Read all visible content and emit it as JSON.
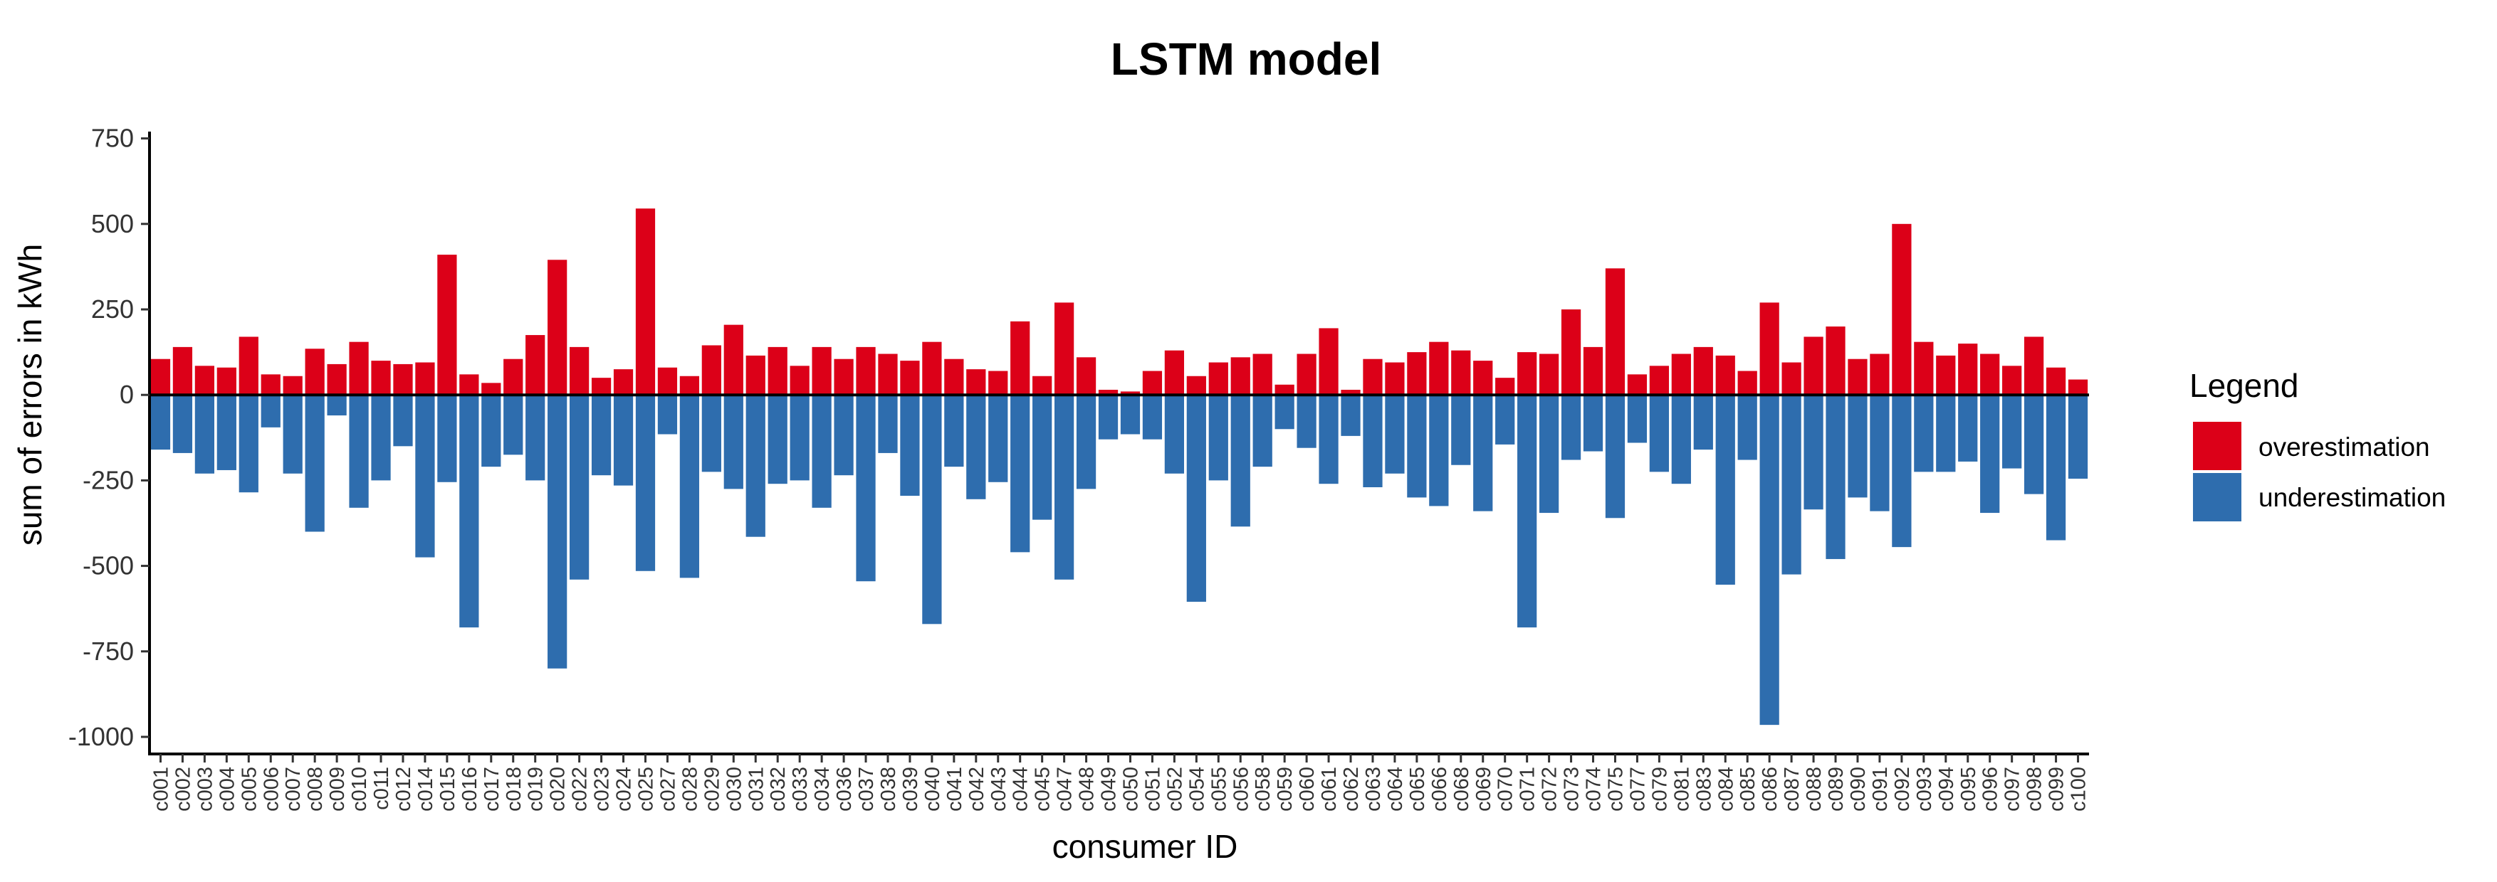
{
  "colors": {
    "overestimation": "#DC0018",
    "underestimation": "#2E6DAE"
  },
  "chart_data": {
    "type": "bar",
    "title": "LSTM model",
    "xlabel": "consumer ID",
    "ylabel": "sum of errors in kWh",
    "ylim": [
      -1050,
      770
    ],
    "yticks": [
      750,
      500,
      250,
      0,
      -250,
      -500,
      -750,
      -1000
    ],
    "ytick_labels": [
      "750",
      "500",
      "250",
      "0",
      "-250",
      "-500",
      "-750",
      "-1000"
    ],
    "grid": false,
    "legend": {
      "title": "Legend",
      "position": "right",
      "entries": [
        "overestimation",
        "underestimation"
      ]
    },
    "categories": [
      "c001",
      "c002",
      "c003",
      "c004",
      "c005",
      "c006",
      "c007",
      "c008",
      "c009",
      "c010",
      "c011",
      "c012",
      "c014",
      "c015",
      "c016",
      "c017",
      "c018",
      "c019",
      "c020",
      "c022",
      "c023",
      "c024",
      "c025",
      "c027",
      "c028",
      "c029",
      "c030",
      "c031",
      "c032",
      "c033",
      "c034",
      "c036",
      "c037",
      "c038",
      "c039",
      "c040",
      "c041",
      "c042",
      "c043",
      "c044",
      "c045",
      "c047",
      "c048",
      "c049",
      "c050",
      "c051",
      "c052",
      "c054",
      "c055",
      "c056",
      "c058",
      "c059",
      "c060",
      "c061",
      "c062",
      "c063",
      "c064",
      "c065",
      "c066",
      "c068",
      "c069",
      "c070",
      "c071",
      "c072",
      "c073",
      "c074",
      "c075",
      "c077",
      "c079",
      "c081",
      "c083",
      "c084",
      "c085",
      "c086",
      "c087",
      "c088",
      "c089",
      "c090",
      "c091",
      "c092",
      "c093",
      "c094",
      "c095",
      "c096",
      "c097",
      "c098",
      "c099",
      "c100"
    ],
    "series": [
      {
        "name": "overestimation",
        "values": [
          105,
          140,
          85,
          80,
          170,
          60,
          55,
          135,
          90,
          155,
          100,
          90,
          95,
          410,
          60,
          35,
          105,
          175,
          395,
          140,
          50,
          75,
          545,
          80,
          55,
          145,
          205,
          115,
          140,
          85,
          140,
          105,
          140,
          120,
          100,
          155,
          105,
          75,
          70,
          215,
          55,
          270,
          110,
          15,
          10,
          70,
          130,
          55,
          95,
          110,
          120,
          30,
          120,
          195,
          15,
          105,
          95,
          125,
          155,
          130,
          100,
          50,
          125,
          120,
          250,
          140,
          370,
          60,
          85,
          120,
          140,
          115,
          70,
          270,
          95,
          170,
          200,
          105,
          120,
          500,
          155,
          115,
          150,
          120,
          85,
          170,
          80,
          45
        ]
      },
      {
        "name": "underestimation",
        "values": [
          -160,
          -170,
          -230,
          -220,
          -285,
          -95,
          -230,
          -400,
          -60,
          -330,
          -250,
          -150,
          -475,
          -255,
          -680,
          -210,
          -175,
          -250,
          -800,
          -540,
          -235,
          -265,
          -515,
          -115,
          -535,
          -225,
          -275,
          -415,
          -260,
          -250,
          -330,
          -235,
          -545,
          -170,
          -295,
          -670,
          -210,
          -305,
          -255,
          -460,
          -365,
          -540,
          -275,
          -130,
          -115,
          -130,
          -230,
          -605,
          -250,
          -385,
          -210,
          -100,
          -155,
          -260,
          -120,
          -270,
          -230,
          -300,
          -325,
          -205,
          -340,
          -145,
          -680,
          -345,
          -190,
          -165,
          -360,
          -140,
          -225,
          -260,
          -160,
          -555,
          -190,
          -965,
          -525,
          -335,
          -480,
          -300,
          -340,
          -445,
          -225,
          -225,
          -195,
          -345,
          -215,
          -290,
          -425,
          -245
        ]
      }
    ]
  }
}
